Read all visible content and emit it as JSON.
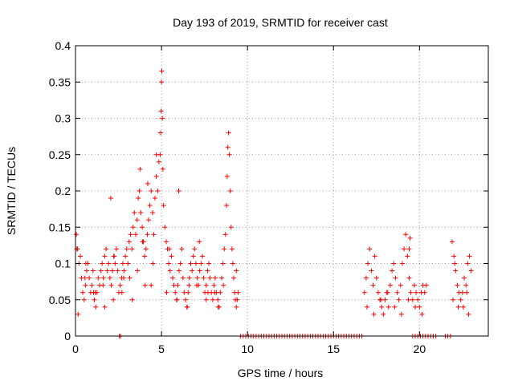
{
  "chart_data": {
    "type": "scatter",
    "title": "Day 193 of 2019, SRMTID for receiver cast",
    "xlabel": "GPS time / hours",
    "ylabel": "SRMTID / TECUs",
    "xlim": [
      0,
      24
    ],
    "ylim": [
      0,
      0.4
    ],
    "xticks": [
      0,
      5,
      10,
      15,
      20
    ],
    "xtick_labels": [
      "0",
      "5",
      "10",
      "15",
      "20"
    ],
    "yticks": [
      0,
      0.05,
      0.1,
      0.15,
      0.2,
      0.25,
      0.3,
      0.35,
      0.4
    ],
    "ytick_labels": [
      "0",
      "0.05",
      "0.1",
      "0.15",
      "0.2",
      "0.25",
      "0.3",
      "0.35",
      "0.4"
    ],
    "grid": true,
    "marker": "plus",
    "color": "#ff0000",
    "series": [
      {
        "name": "SRMTID",
        "x": [
          0.05,
          0.12,
          0.2,
          0.28,
          0.35,
          0.42,
          0.5,
          0.58,
          0.65,
          0.72,
          0.8,
          0.88,
          0.95,
          1.02,
          1.1,
          1.18,
          1.25,
          1.32,
          1.4,
          1.48,
          1.55,
          1.62,
          1.7,
          1.78,
          1.85,
          1.92,
          2.0,
          2.08,
          2.15,
          2.22,
          2.3,
          2.38,
          2.45,
          2.52,
          2.6,
          2.68,
          2.75,
          2.82,
          2.9,
          2.98,
          3.05,
          3.12,
          3.2,
          3.28,
          3.35,
          3.42,
          3.5,
          3.58,
          3.65,
          3.72,
          3.8,
          3.88,
          3.95,
          4.02,
          4.1,
          4.18,
          4.25,
          4.32,
          4.4,
          4.48,
          4.55,
          4.62,
          4.7,
          4.78,
          4.85,
          4.92,
          4.95,
          4.98,
          5.0,
          5.02,
          5.05,
          5.08,
          5.12,
          5.2,
          5.28,
          5.35,
          5.42,
          5.5,
          5.58,
          5.65,
          5.72,
          5.8,
          5.88,
          5.95,
          6.02,
          6.1,
          6.18,
          6.25,
          6.32,
          6.4,
          6.48,
          6.55,
          6.62,
          6.7,
          6.78,
          6.85,
          6.92,
          7.0,
          7.08,
          7.15,
          7.22,
          7.3,
          7.38,
          7.45,
          7.52,
          7.6,
          7.68,
          7.75,
          7.82,
          7.9,
          7.98,
          8.05,
          8.12,
          8.2,
          8.28,
          8.35,
          8.42,
          8.5,
          8.58,
          8.65,
          8.72,
          8.78,
          8.82,
          8.86,
          8.9,
          8.95,
          9.0,
          9.05,
          9.1,
          9.15,
          9.2,
          9.25,
          9.3,
          9.35,
          9.4,
          9.45,
          0.15,
          0.6,
          1.15,
          1.7,
          2.25,
          2.8,
          3.3,
          3.9,
          4.4,
          5.3,
          5.9,
          6.6,
          7.2,
          7.7,
          8.3,
          0.08,
          0.55,
          1.05,
          1.6,
          2.2,
          2.7,
          3.15,
          3.6,
          4.05,
          4.5,
          5.45,
          6.0,
          6.5,
          7.05,
          7.6,
          8.1,
          8.6,
          9.35,
          2.05,
          3.75,
          4.2,
          4.7,
          16.8,
          16.9,
          17.0,
          17.1,
          17.2,
          17.3,
          17.4,
          17.5,
          17.6,
          17.7,
          17.8,
          17.9,
          18.0,
          18.1,
          18.2,
          18.3,
          18.4,
          18.5,
          18.6,
          18.7,
          18.8,
          18.9,
          19.0,
          19.1,
          19.2,
          19.3,
          19.4,
          19.5,
          19.6,
          19.7,
          19.8,
          19.9,
          20.0,
          20.1,
          20.2,
          20.3,
          20.4,
          16.95,
          17.35,
          17.75,
          18.15,
          18.55,
          18.95,
          19.35,
          19.75,
          20.15,
          19.4,
          19.45,
          21.9,
          22.0,
          22.1,
          22.2,
          22.3,
          22.4,
          22.5,
          22.6,
          22.7,
          22.8,
          22.9,
          23.0,
          21.95,
          22.25,
          22.55,
          22.85,
          22.75,
          22.05
        ],
        "y": [
          0.14,
          0.12,
          0.1,
          0.11,
          0.08,
          0.06,
          0.05,
          0.07,
          0.09,
          0.1,
          0.08,
          0.06,
          0.07,
          0.09,
          0.05,
          0.04,
          0.06,
          0.08,
          0.07,
          0.09,
          0.1,
          0.08,
          0.11,
          0.12,
          0.09,
          0.1,
          0.08,
          0.07,
          0.09,
          0.11,
          0.1,
          0.12,
          0.09,
          0.06,
          0.07,
          0.08,
          0.1,
          0.09,
          0.11,
          0.12,
          0.1,
          0.13,
          0.14,
          0.12,
          0.15,
          0.17,
          0.14,
          0.16,
          0.19,
          0.2,
          0.17,
          0.15,
          0.13,
          0.11,
          0.12,
          0.14,
          0.16,
          0.18,
          0.2,
          0.17,
          0.14,
          0.19,
          0.22,
          0.2,
          0.24,
          0.25,
          0.28,
          0.31,
          0.35,
          0.365,
          0.3,
          0.23,
          0.18,
          0.15,
          0.13,
          0.12,
          0.1,
          0.09,
          0.11,
          0.08,
          0.07,
          0.06,
          0.05,
          0.07,
          0.09,
          0.1,
          0.12,
          0.08,
          0.06,
          0.05,
          0.04,
          0.06,
          0.08,
          0.1,
          0.09,
          0.11,
          0.12,
          0.1,
          0.08,
          0.07,
          0.09,
          0.1,
          0.11,
          0.08,
          0.06,
          0.07,
          0.09,
          0.1,
          0.08,
          0.06,
          0.05,
          0.07,
          0.08,
          0.06,
          0.05,
          0.04,
          0.06,
          0.08,
          0.1,
          0.12,
          0.14,
          0.18,
          0.22,
          0.26,
          0.28,
          0.25,
          0.2,
          0.15,
          0.12,
          0.1,
          0.08,
          0.06,
          0.05,
          0.04,
          0.05,
          0.06,
          0.03,
          0.1,
          0.06,
          0.04,
          0.11,
          0.08,
          0.05,
          0.13,
          0.07,
          0.06,
          0.05,
          0.07,
          0.13,
          0.06,
          0.04,
          0.12,
          0.08,
          0.06,
          0.07,
          0.05,
          0.06,
          0.08,
          0.09,
          0.07,
          0.1,
          0.12,
          0.2,
          0.04,
          0.07,
          0.05,
          0.06,
          0.07,
          0.09,
          0.19,
          0.23,
          0.21,
          0.25,
          0.06,
          0.08,
          0.1,
          0.12,
          0.09,
          0.07,
          0.11,
          0.08,
          0.06,
          0.05,
          0.04,
          0.03,
          0.05,
          0.06,
          0.04,
          0.07,
          0.09,
          0.1,
          0.08,
          0.06,
          0.05,
          0.07,
          0.1,
          0.12,
          0.14,
          0.11,
          0.08,
          0.06,
          0.05,
          0.07,
          0.06,
          0.05,
          0.04,
          0.06,
          0.07,
          0.06,
          0.07,
          0.04,
          0.03,
          0.05,
          0.06,
          0.04,
          0.03,
          0.05,
          0.04,
          0.03,
          0.12,
          0.135,
          0.13,
          0.11,
          0.09,
          0.07,
          0.06,
          0.05,
          0.06,
          0.08,
          0.07,
          0.1,
          0.11,
          0.09,
          0.05,
          0.04,
          0.04,
          0.03,
          0.06,
          0.1
        ],
        "zero_marks_x": [
          2.55,
          2.62,
          9.6,
          9.75,
          9.9,
          10.05,
          10.2,
          10.35,
          10.5,
          10.65,
          10.8,
          10.95,
          11.1,
          11.25,
          11.4,
          11.55,
          11.7,
          11.85,
          12.0,
          12.15,
          12.3,
          12.45,
          12.6,
          12.75,
          12.9,
          13.05,
          13.2,
          13.35,
          13.5,
          13.65,
          13.8,
          13.95,
          14.1,
          14.25,
          14.4,
          14.55,
          14.7,
          14.85,
          15.0,
          15.15,
          15.3,
          15.45,
          15.6,
          15.75,
          15.9,
          16.05,
          16.2,
          16.35,
          16.5,
          16.65,
          19.6,
          19.75,
          19.9,
          20.05,
          20.2,
          20.35,
          20.5,
          20.65,
          20.8,
          20.95,
          21.5,
          21.65,
          21.8
        ]
      }
    ]
  }
}
